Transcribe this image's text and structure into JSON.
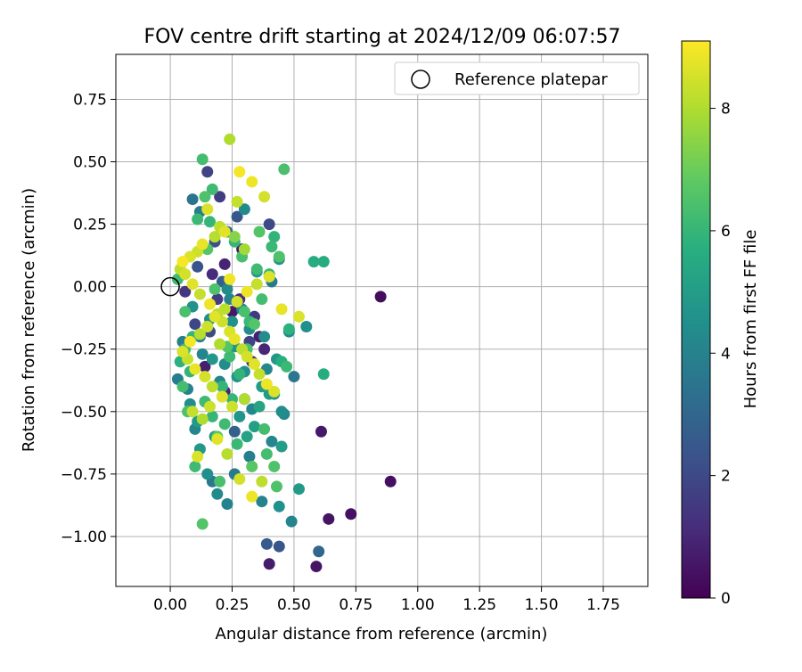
{
  "chart_data": {
    "type": "scatter",
    "title": "FOV centre drift starting at 2024/12/09 06:07:57",
    "xlabel": "Angular distance from reference (arcmin)",
    "ylabel": "Rotation from reference (arcmin)",
    "xlim": [
      -0.22,
      1.93
    ],
    "ylim": [
      -1.2,
      0.93
    ],
    "xticks": [
      0.0,
      0.25,
      0.5,
      0.75,
      1.0,
      1.25,
      1.5,
      1.75
    ],
    "yticks": [
      -1.0,
      -0.75,
      -0.5,
      -0.25,
      0.0,
      0.25,
      0.5,
      0.75
    ],
    "xtick_labels": [
      "0.00",
      "0.25",
      "0.50",
      "0.75",
      "1.00",
      "1.25",
      "1.50",
      "1.75"
    ],
    "ytick_labels": [
      "−1.00",
      "−0.75",
      "−0.50",
      "−0.25",
      "0.00",
      "0.25",
      "0.50",
      "0.75"
    ],
    "grid": true,
    "legend": {
      "position": "upper right",
      "entries": [
        "Reference platepar"
      ]
    },
    "reference_point": {
      "x": 0.0,
      "y": 0.0,
      "label": "Reference platepar"
    },
    "colorbar": {
      "label": "Hours from first FF file",
      "colormap": "viridis",
      "range": [
        0,
        9.1
      ],
      "ticks": [
        0,
        2,
        4,
        6,
        8
      ],
      "tick_labels": [
        "0",
        "2",
        "4",
        "6",
        "8"
      ]
    },
    "series": [
      {
        "x": [
          0.85,
          0.89,
          0.64,
          0.73,
          0.61,
          0.59,
          0.6,
          0.4,
          0.39,
          0.44,
          0.62,
          0.3,
          0.38,
          0.36,
          0.34,
          0.28,
          0.22,
          0.15,
          0.2,
          0.12,
          0.18,
          0.17,
          0.25,
          0.09,
          0.4,
          0.33,
          0.3,
          0.1,
          0.14,
          0.22,
          0.26,
          0.06,
          0.16,
          0.29,
          0.23,
          0.19,
          0.27,
          0.11,
          0.32,
          0.21,
          0.37,
          0.41,
          0.44,
          0.49,
          0.45,
          0.5,
          0.43,
          0.58,
          0.55,
          0.46,
          0.45,
          0.4,
          0.36,
          0.32,
          0.26,
          0.23,
          0.19,
          0.17,
          0.15,
          0.12,
          0.1,
          0.03,
          0.08,
          0.28,
          0.34,
          0.42,
          0.48,
          0.52,
          0.31,
          0.38,
          0.44,
          0.18,
          0.21,
          0.13,
          0.05,
          0.27,
          0.33,
          0.16,
          0.24,
          0.35,
          0.41,
          0.09,
          0.22,
          0.29,
          0.37,
          0.14,
          0.11,
          0.2,
          0.26,
          0.3,
          0.07,
          0.17,
          0.25,
          0.39,
          0.32,
          0.12,
          0.23,
          0.46,
          0.62,
          0.42,
          0.47,
          0.45,
          0.13,
          0.17,
          0.14,
          0.36,
          0.41,
          0.03,
          0.06,
          0.09,
          0.04,
          0.05,
          0.07,
          0.19,
          0.22,
          0.25,
          0.28,
          0.31,
          0.34,
          0.37,
          0.4,
          0.44,
          0.48,
          0.16,
          0.1,
          0.13,
          0.2,
          0.27,
          0.33,
          0.39,
          0.43,
          0.21,
          0.24,
          0.3,
          0.15,
          0.11,
          0.06,
          0.08,
          0.18,
          0.35,
          0.26,
          0.29,
          0.23,
          0.32,
          0.38,
          0.42,
          0.14,
          0.17,
          0.24,
          0.28,
          0.33,
          0.38,
          0.27,
          0.15,
          0.2,
          0.22,
          0.18,
          0.13,
          0.11,
          0.08,
          0.05,
          0.04,
          0.06,
          0.09,
          0.12,
          0.16,
          0.19,
          0.21,
          0.24,
          0.26,
          0.29,
          0.31,
          0.34,
          0.36,
          0.39,
          0.42,
          0.3,
          0.25,
          0.21,
          0.17,
          0.14,
          0.1,
          0.07,
          0.05,
          0.08,
          0.12,
          0.15,
          0.18,
          0.22,
          0.27,
          0.31,
          0.35,
          0.4,
          0.45,
          0.52,
          0.37,
          0.33,
          0.28,
          0.23,
          0.19,
          0.16,
          0.13,
          0.11,
          0.09,
          0.26,
          0.3,
          0.24,
          0.2
        ],
        "y": [
          -0.04,
          -0.78,
          -0.93,
          -0.91,
          -0.58,
          -1.12,
          -1.06,
          -1.11,
          -1.03,
          -1.04,
          -0.35,
          0.31,
          -0.25,
          -0.2,
          -0.12,
          -0.05,
          0.09,
          0.46,
          0.36,
          0.3,
          0.18,
          0.05,
          -0.1,
          0.35,
          0.25,
          -0.3,
          -0.45,
          -0.15,
          -0.32,
          -0.42,
          -0.58,
          -0.02,
          -0.18,
          0.15,
          0.22,
          -0.05,
          0.28,
          0.08,
          -0.22,
          0.02,
          -0.86,
          -0.62,
          -0.88,
          -0.94,
          -0.5,
          -0.36,
          -0.29,
          0.1,
          -0.16,
          -0.51,
          -0.64,
          -0.43,
          -0.48,
          -0.68,
          -0.75,
          -0.87,
          -0.83,
          -0.78,
          -0.75,
          -0.65,
          -0.57,
          -0.37,
          -0.47,
          -0.52,
          -0.56,
          -0.43,
          -0.18,
          -0.81,
          -0.6,
          -0.2,
          0.11,
          -0.6,
          -0.44,
          -0.27,
          -0.22,
          -0.36,
          -0.49,
          -0.13,
          -0.05,
          0.06,
          0.02,
          -0.08,
          -0.31,
          -0.09,
          -0.4,
          -0.46,
          -0.54,
          -0.38,
          -0.24,
          -0.34,
          -0.41,
          -0.29,
          -0.14,
          -0.33,
          -0.17,
          -0.2,
          -0.01,
          0.47,
          0.1,
          0.2,
          -0.32,
          -0.3,
          0.51,
          0.39,
          0.36,
          0.22,
          0.16,
          0.03,
          -0.1,
          -0.2,
          -0.3,
          -0.4,
          -0.5,
          -0.6,
          -0.55,
          -0.45,
          -0.35,
          -0.25,
          -0.15,
          -0.05,
          0.05,
          0.12,
          -0.17,
          0.26,
          -0.72,
          -0.95,
          -0.78,
          -0.63,
          -0.72,
          -0.67,
          -0.8,
          -0.4,
          -0.28,
          -0.1,
          0.15,
          0.27,
          -0.25,
          -0.34,
          -0.01,
          0.07,
          0.18,
          0.12,
          -0.24,
          -0.14,
          -0.57,
          -0.72,
          -0.46,
          -0.52,
          0.59,
          0.46,
          0.42,
          0.36,
          0.34,
          0.31,
          0.24,
          0.22,
          0.2,
          0.17,
          0.14,
          0.12,
          0.1,
          0.07,
          0.05,
          0.01,
          -0.03,
          -0.07,
          -0.11,
          -0.14,
          -0.18,
          -0.21,
          -0.25,
          -0.28,
          -0.31,
          -0.35,
          -0.39,
          -0.42,
          -0.45,
          -0.48,
          -0.44,
          -0.4,
          -0.36,
          -0.33,
          -0.29,
          -0.26,
          -0.22,
          -0.19,
          -0.16,
          -0.12,
          -0.09,
          -0.06,
          -0.02,
          0.01,
          0.04,
          -0.09,
          -0.12,
          -0.78,
          -0.84,
          -0.77,
          -0.67,
          -0.61,
          -0.48,
          -0.53,
          -0.68,
          -0.5,
          0.2,
          0.15,
          0.03,
          -0.23
        ],
        "hours": [
          0.3,
          0.4,
          0.5,
          0.4,
          0.6,
          0.5,
          3.0,
          0.7,
          2.6,
          2.4,
          5.6,
          4.3,
          1.0,
          0.8,
          1.5,
          1.2,
          0.9,
          1.8,
          1.6,
          3.8,
          2.2,
          1.1,
          0.6,
          3.5,
          2.0,
          1.3,
          1.7,
          1.9,
          0.8,
          1.0,
          2.8,
          1.4,
          2.1,
          0.7,
          3.2,
          1.6,
          2.5,
          2.3,
          1.8,
          2.7,
          4.0,
          4.2,
          4.6,
          4.1,
          4.4,
          3.6,
          4.8,
          5.6,
          4.5,
          4.2,
          5.0,
          4.9,
          5.3,
          3.9,
          3.7,
          4.0,
          4.3,
          3.6,
          4.5,
          4.8,
          4.1,
          3.8,
          4.4,
          4.7,
          5.1,
          4.6,
          4.3,
          4.9,
          5.2,
          4.4,
          4.6,
          4.8,
          4.3,
          4.1,
          3.9,
          4.7,
          4.2,
          4.5,
          4.0,
          4.8,
          3.7,
          4.6,
          4.4,
          4.2,
          5.0,
          4.3,
          4.9,
          4.1,
          4.7,
          4.5,
          4.0,
          4.8,
          4.6,
          4.2,
          4.4,
          3.9,
          4.3,
          6.4,
          5.6,
          5.9,
          6.1,
          5.7,
          6.3,
          6.2,
          6.5,
          6.6,
          6.1,
          6.2,
          6.4,
          6.0,
          5.8,
          6.3,
          6.5,
          6.7,
          6.2,
          6.0,
          5.9,
          6.4,
          6.6,
          6.3,
          6.1,
          6.5,
          5.8,
          6.0,
          6.2,
          6.6,
          6.4,
          6.1,
          6.7,
          6.3,
          6.5,
          6.0,
          6.2,
          6.4,
          6.6,
          6.1,
          6.3,
          5.9,
          6.5,
          6.2,
          6.0,
          6.4,
          6.6,
          6.1,
          6.3,
          6.5,
          6.2,
          6.0,
          8.0,
          9.0,
          8.9,
          8.5,
          8.3,
          8.6,
          8.2,
          8.7,
          8.1,
          8.8,
          8.4,
          8.6,
          9.0,
          8.2,
          8.5,
          8.7,
          8.3,
          8.9,
          8.1,
          8.4,
          8.6,
          8.8,
          8.2,
          8.5,
          8.7,
          8.3,
          8.9,
          8.6,
          8.0,
          8.4,
          8.7,
          8.2,
          8.5,
          8.8,
          8.3,
          8.6,
          9.0,
          8.1,
          8.4,
          8.7,
          8.2,
          8.5,
          8.9,
          8.3,
          8.6,
          8.8,
          8.6,
          8.2,
          8.9,
          8.5,
          8.1,
          8.7,
          8.4,
          8.0,
          8.6,
          8.3,
          7.4,
          7.8,
          8.9,
          8.0
        ]
      }
    ]
  }
}
